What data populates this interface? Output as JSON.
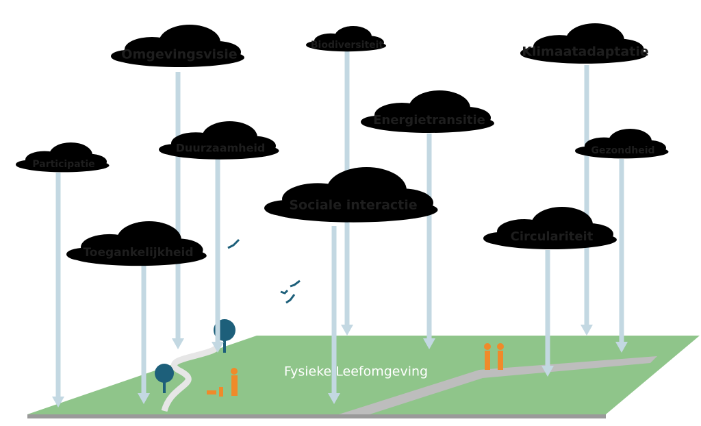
{
  "clouds": [
    {
      "label": "Omgevingsvisie"
    },
    {
      "label": "Biodiversiteit"
    },
    {
      "label": "Klimaatadaptatie"
    },
    {
      "label": "Energietransitie"
    },
    {
      "label": "Participatie"
    },
    {
      "label": "Duurzaamheid"
    },
    {
      "label": "Gezondheid"
    },
    {
      "label": "Sociale interactie"
    },
    {
      "label": "Circulariteit"
    },
    {
      "label": "Toegankelijkheid"
    }
  ],
  "ground": {
    "label": "Fysieke Leefomgeving"
  }
}
